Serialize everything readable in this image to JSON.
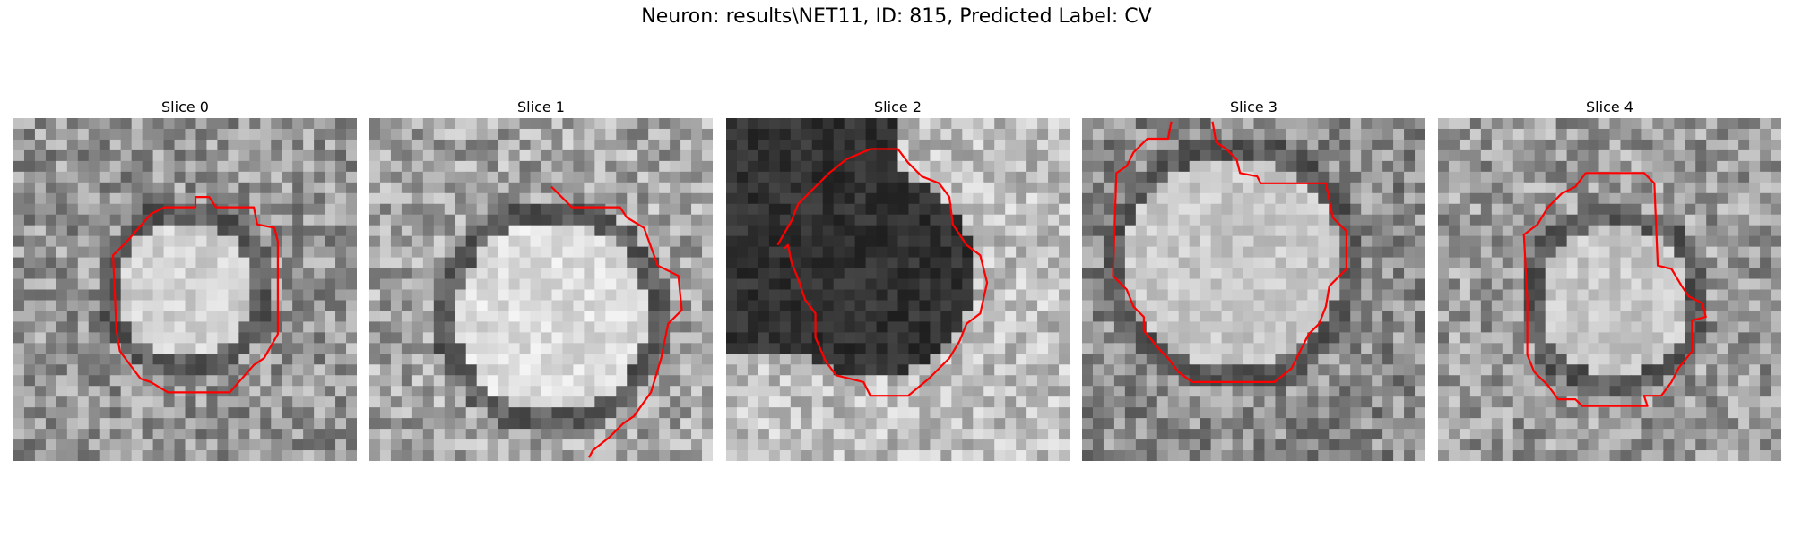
{
  "figure": {
    "title": "Neuron: results\\NET11, ID: 815, Predicted Label: CV"
  },
  "panels": [
    {
      "title": "Slice 0"
    },
    {
      "title": "Slice 1"
    },
    {
      "title": "Slice 2"
    },
    {
      "title": "Slice 3"
    },
    {
      "title": "Slice 4"
    }
  ],
  "colors": {
    "contour": "#ff0000",
    "background": "#ffffff"
  }
}
